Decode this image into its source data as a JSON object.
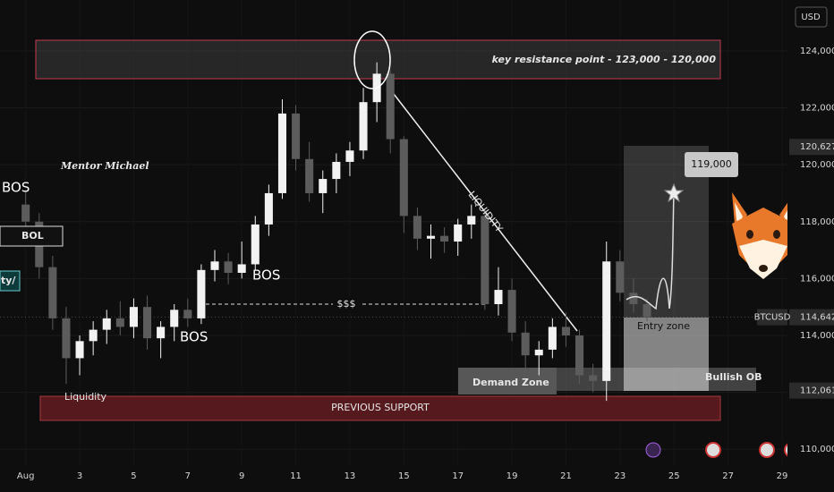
{
  "chart_data": {
    "type": "candlestick",
    "axis_unit": "USD",
    "symbol": "BTCUSD",
    "up_color": "#f2f2f2",
    "down_color": "#5c5c5c",
    "grid": true,
    "xlim": [
      0.05,
      29.2
    ],
    "ylim": [
      109440,
      125790
    ],
    "xticks": [
      {
        "value": 1,
        "label": "Aug"
      },
      3,
      5,
      7,
      9,
      11,
      13,
      15,
      17,
      19,
      21,
      23,
      25,
      27,
      29
    ],
    "yticks": [
      {
        "value": 110000,
        "label": "110,000"
      },
      {
        "value": 112000,
        "label": "112,000"
      },
      {
        "value": 114000,
        "label": "114,000"
      },
      {
        "value": 116000,
        "label": "116,000"
      },
      {
        "value": 118000,
        "label": "118,000"
      },
      {
        "value": 120000,
        "label": "120,000"
      },
      {
        "value": 122000,
        "label": "122,000"
      },
      {
        "value": 124000,
        "label": "124,000"
      }
    ],
    "price_labels": [
      {
        "value": 120627,
        "label": "120,627"
      },
      {
        "value": 114642,
        "label": "114,642"
      },
      {
        "value": 112061,
        "label": "112,061"
      }
    ],
    "series": {
      "x": [
        1.0,
        1.5,
        2.0,
        2.5,
        3.0,
        3.5,
        4.0,
        4.5,
        5.0,
        5.5,
        6.0,
        6.5,
        7.0,
        7.5,
        8.0,
        8.5,
        9.0,
        9.5,
        10.0,
        10.5,
        11.0,
        11.5,
        12.0,
        12.5,
        13.0,
        13.5,
        14.0,
        14.5,
        15.0,
        15.5,
        16.0,
        16.5,
        17.0,
        17.5,
        18.0,
        18.5,
        19.0,
        19.5,
        20.0,
        20.5,
        21.0,
        21.5,
        22.0,
        22.5,
        23.0,
        23.5,
        24.0
      ],
      "open": [
        118600,
        118000,
        116400,
        114600,
        113200,
        113800,
        114200,
        114600,
        114300,
        115000,
        113900,
        114300,
        114900,
        114600,
        116300,
        116600,
        116200,
        116500,
        117900,
        119000,
        121800,
        120200,
        119000,
        119500,
        120100,
        120500,
        122200,
        123200,
        120900,
        118200,
        117400,
        117500,
        117300,
        117900,
        118200,
        115100,
        115600,
        114100,
        113300,
        113500,
        114300,
        114000,
        112600,
        112400,
        116600,
        115500,
        115100
      ],
      "high": [
        119100,
        118300,
        116800,
        115000,
        114000,
        114500,
        114900,
        115200,
        115300,
        115400,
        114500,
        115100,
        115300,
        116500,
        117000,
        116900,
        117300,
        118200,
        119300,
        122300,
        122100,
        120800,
        119800,
        120400,
        120800,
        122700,
        123600,
        123300,
        121000,
        118500,
        117900,
        117800,
        118100,
        118600,
        118400,
        116400,
        116000,
        114500,
        113800,
        114600,
        114800,
        114200,
        113000,
        117300,
        117000,
        116000,
        115300
      ],
      "low": [
        117800,
        116000,
        114200,
        112300,
        112600,
        113300,
        113700,
        114000,
        113900,
        113500,
        113200,
        113800,
        114300,
        114400,
        115900,
        115800,
        116000,
        116300,
        117500,
        118800,
        119800,
        118700,
        118300,
        119000,
        119600,
        120200,
        121500,
        120400,
        117600,
        117000,
        116700,
        116900,
        116800,
        117400,
        114900,
        114700,
        113800,
        112700,
        112600,
        113200,
        113600,
        112300,
        112000,
        111700,
        115200,
        114800,
        114500
      ],
      "close": [
        118000,
        116400,
        114600,
        113200,
        113800,
        114200,
        114600,
        114300,
        115000,
        113900,
        114300,
        114900,
        114600,
        116300,
        116600,
        116200,
        116500,
        117900,
        119000,
        121800,
        120200,
        119000,
        119500,
        120100,
        120500,
        122200,
        123200,
        120900,
        118200,
        117400,
        117500,
        117300,
        117900,
        118200,
        115100,
        115600,
        114100,
        113300,
        113500,
        114300,
        114000,
        112600,
        112400,
        116600,
        115500,
        115100,
        114642
      ]
    },
    "annotations": {
      "resistance": "key resistance point - 123,000 - 120,000",
      "author": "Mentor Michael",
      "bos_1": "BOS",
      "bos_2": "BOS",
      "bos_3": "BOS",
      "bol": "BOL",
      "left_cut": "ty/",
      "dollars": "$$$",
      "liquidity_line": "LIQUIDITY",
      "liquidity_low": "Liquidity",
      "previous_support": "PREVIOUS SUPPORT",
      "demand_zone": "Demand Zone",
      "entry_zone": "Entry zone",
      "bullish_ob": "Bullish OB",
      "target": "119,000"
    }
  }
}
